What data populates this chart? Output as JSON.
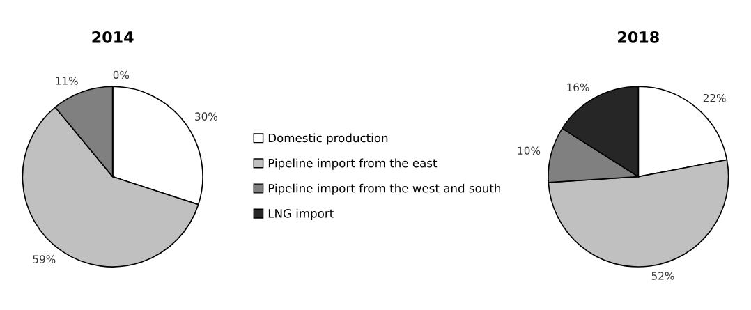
{
  "chart_data": [
    {
      "type": "pie",
      "title": "2014",
      "categories": [
        "Domestic production",
        "Pipeline import from the east",
        "Pipeline import from the west and south",
        "LNG import"
      ],
      "values": [
        30,
        59,
        11,
        0
      ],
      "value_labels": [
        "30%",
        "59%",
        "11%",
        "0%"
      ],
      "colors": [
        "#ffffff",
        "#c0c0c0",
        "#808080",
        "#262626"
      ],
      "legend": "right"
    },
    {
      "type": "pie",
      "title": "2018",
      "categories": [
        null,
        null,
        null,
        null
      ],
      "values": [
        22,
        52,
        10,
        16
      ],
      "value_labels": [
        "22%",
        "52%",
        "10%",
        "16%"
      ],
      "colors": [
        "#ffffff",
        "#c0c0c0",
        "#808080",
        "#262626"
      ]
    }
  ]
}
